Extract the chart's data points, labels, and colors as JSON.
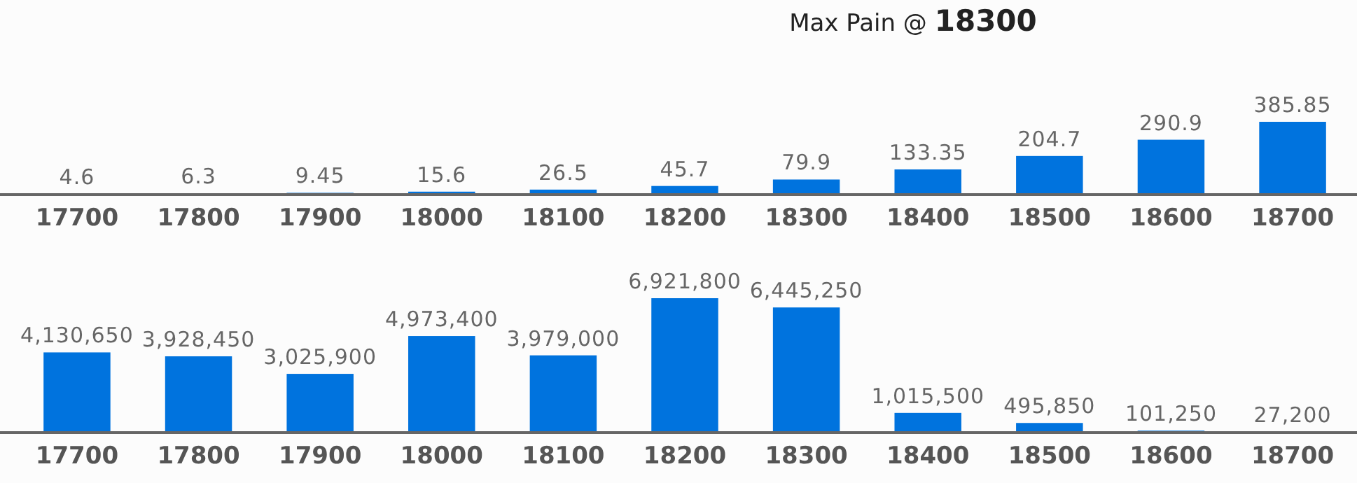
{
  "chart_data": [
    {
      "type": "bar",
      "title": "Max Pain @ 18300",
      "categories": [
        "17700",
        "17800",
        "17900",
        "18000",
        "18100",
        "18200",
        "18300",
        "18400",
        "18500",
        "18600",
        "18700"
      ],
      "values": [
        4.6,
        6.3,
        9.45,
        15.6,
        26.5,
        45.7,
        79.9,
        133.35,
        204.7,
        290.9,
        385.85
      ],
      "color": "#0073de",
      "data_labels": true
    },
    {
      "type": "bar",
      "categories": [
        "17700",
        "17800",
        "17900",
        "18000",
        "18100",
        "18200",
        "18300",
        "18400",
        "18500",
        "18600",
        "18700"
      ],
      "values": [
        4130650,
        3928450,
        3025900,
        4973400,
        3979000,
        6921800,
        6445250,
        1015500,
        495850,
        101250,
        27200
      ],
      "value_labels": [
        "4,130,650",
        "3,928,450",
        "3,025,900",
        "4,973,400",
        "3,979,000",
        "6,921,800",
        "6,445,250",
        "1,015,500",
        "495,850",
        "101,250",
        "27,200"
      ],
      "color": "#0073de"
    }
  ]
}
